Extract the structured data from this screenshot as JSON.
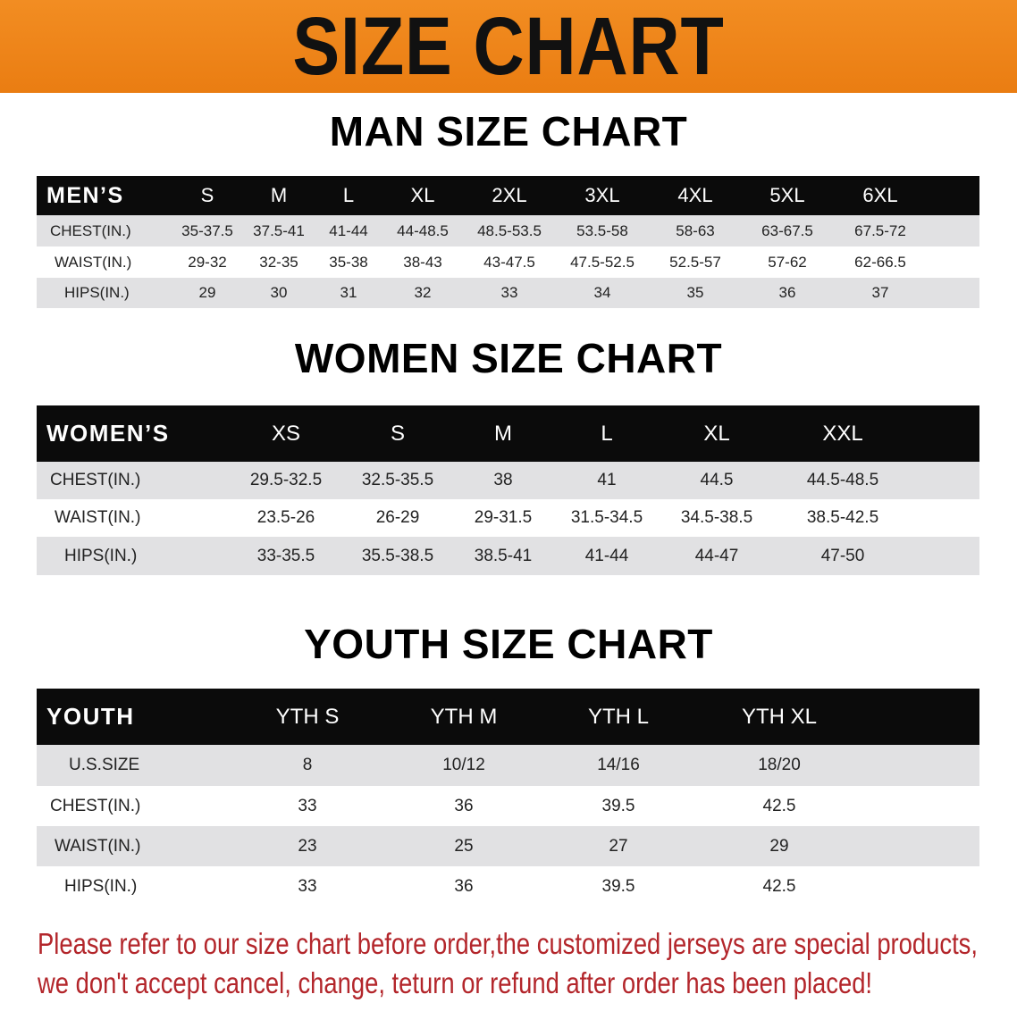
{
  "banner": {
    "title": "SIZE CHART",
    "color": "#ee8519"
  },
  "men": {
    "title": "MAN SIZE CHART",
    "headers": [
      "MEN’S",
      "S",
      "M",
      "L",
      "XL",
      "2XL",
      "3XL",
      "4XL",
      "5XL",
      "6XL"
    ],
    "rows": [
      [
        "CHEST(IN.)",
        "35-37.5",
        "37.5-41",
        "41-44",
        "44-48.5",
        "48.5-53.5",
        "53.5-58",
        "58-63",
        "63-67.5",
        "67.5-72"
      ],
      [
        "WAIST(IN.)",
        "29-32",
        "32-35",
        "35-38",
        "38-43",
        "43-47.5",
        "47.5-52.5",
        "52.5-57",
        "57-62",
        "62-66.5"
      ],
      [
        "HIPS(IN.)",
        "29",
        "30",
        "31",
        "32",
        "33",
        "34",
        "35",
        "36",
        "37"
      ]
    ]
  },
  "women": {
    "title": "WOMEN SIZE CHART",
    "headers": [
      "WOMEN’S",
      "XS",
      "S",
      "M",
      "L",
      "XL",
      "XXL"
    ],
    "rows": [
      [
        "CHEST(IN.)",
        "29.5-32.5",
        "32.5-35.5",
        "38",
        "41",
        "44.5",
        "44.5-48.5"
      ],
      [
        "WAIST(IN.)",
        "23.5-26",
        "26-29",
        "29-31.5",
        "31.5-34.5",
        "34.5-38.5",
        "38.5-42.5"
      ],
      [
        "HIPS(IN.)",
        "33-35.5",
        "35.5-38.5",
        "38.5-41",
        "41-44",
        "44-47",
        "47-50"
      ]
    ]
  },
  "youth": {
    "title": "YOUTH SIZE CHART",
    "headers": [
      "YOUTH",
      "YTH S",
      "YTH M",
      "YTH L",
      "YTH XL"
    ],
    "rows": [
      [
        "U.S.SIZE",
        "8",
        "10/12",
        "14/16",
        "18/20"
      ],
      [
        "CHEST(IN.)",
        "33",
        "36",
        "39.5",
        "42.5"
      ],
      [
        "WAIST(IN.)",
        "23",
        "25",
        "27",
        "29"
      ],
      [
        "HIPS(IN.)",
        "33",
        "36",
        "39.5",
        "42.5"
      ]
    ]
  },
  "notice": {
    "line1": "Please refer to our size chart before order,the customized jerseys are special products,",
    "line2": "we don't accept cancel, change, teturn or refund after order has been placed!",
    "color": "#b3262b"
  }
}
